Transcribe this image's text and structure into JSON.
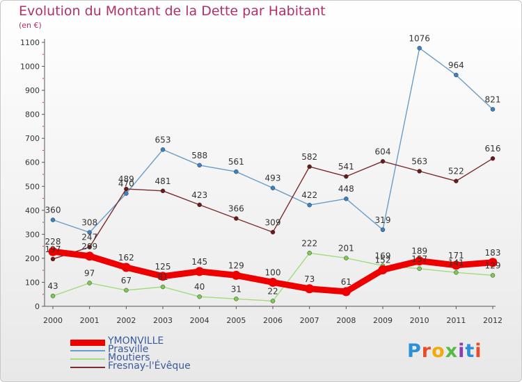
{
  "header": {
    "title": "Evolution du Montant de la Dette par Habitant",
    "subtitle": "(en €)"
  },
  "logo": {
    "text": "Proxiti",
    "letter_colors": [
      "#2d8fd8",
      "#e84d2a",
      "#f2a90c",
      "#58b947",
      "#8a3fb0",
      "#2d8fd8",
      "#e84d2a"
    ]
  },
  "chart_data": {
    "type": "line",
    "title": "Evolution du Montant de la Dette par Habitant",
    "subtitle": "(en €)",
    "xlabel": "",
    "ylabel": "",
    "x": [
      "2000",
      "2001",
      "2002",
      "2003",
      "2004",
      "2005",
      "2006",
      "2007",
      "2008",
      "2009",
      "2010",
      "2011",
      "2012"
    ],
    "ylim": [
      0,
      1100
    ],
    "yticks": [
      0,
      100,
      200,
      300,
      400,
      500,
      600,
      700,
      800,
      900,
      1000,
      1100
    ],
    "grid": false,
    "legend_position": "bottom-left",
    "series": [
      {
        "name": "YMONVILLE",
        "color": "#ee0000",
        "marker_color": "#ee0000",
        "emphasis": true,
        "values": [
          228,
          209,
          162,
          125,
          145,
          129,
          100,
          73,
          61,
          152,
          189,
          171,
          183
        ],
        "labels": [
          "228",
          "209",
          "162",
          "125",
          "145",
          "129",
          "100",
          "73",
          "61",
          "152",
          "189",
          "171",
          "183"
        ]
      },
      {
        "name": "Prasville",
        "color": "#6a9cc8",
        "marker_color": "#3b82c4",
        "emphasis": false,
        "values": [
          360,
          308,
          470,
          653,
          588,
          561,
          493,
          422,
          448,
          319,
          1076,
          964,
          821
        ],
        "labels": [
          "360",
          "308",
          "470",
          "653",
          "588",
          "561",
          "493",
          "422",
          "448",
          "319",
          "1076",
          "964",
          "821"
        ]
      },
      {
        "name": "Moutiers",
        "color": "#9fdc7c",
        "marker_color": "#7ccb4f",
        "emphasis": false,
        "values": [
          43,
          97,
          67,
          81,
          40,
          31,
          22,
          222,
          201,
          169,
          157,
          141,
          129
        ],
        "labels": [
          "43",
          "97",
          "67",
          "81",
          "40",
          "31",
          "22",
          "222",
          "201",
          "169",
          "157",
          "141",
          "129"
        ]
      },
      {
        "name": "Fresnay-l'Évêque",
        "color": "#7a2a2a",
        "marker_color": "#6b1a1a",
        "emphasis": false,
        "values": [
          197,
          247,
          489,
          481,
          423,
          366,
          309,
          582,
          541,
          604,
          563,
          522,
          616
        ],
        "labels": [
          "197",
          "247",
          "489",
          "481",
          "423",
          "366",
          "309",
          "582",
          "541",
          "604",
          "563",
          "522",
          "616"
        ]
      }
    ]
  }
}
